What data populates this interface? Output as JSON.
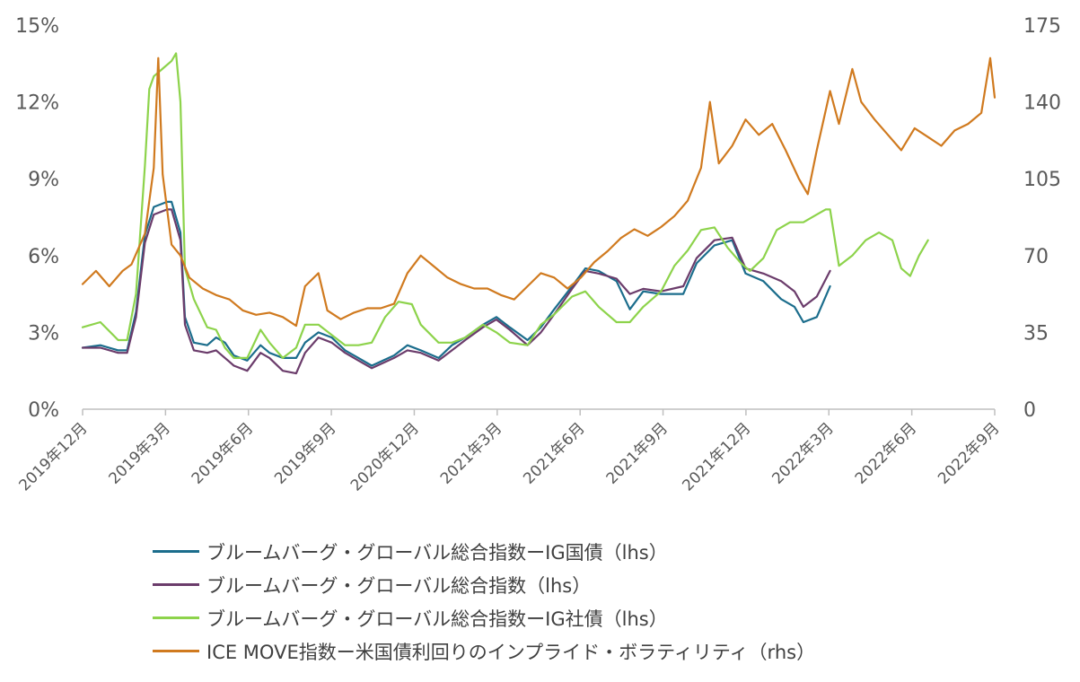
{
  "chart_data": {
    "type": "line",
    "x_categories": [
      "2019年12月",
      "2019年3月",
      "2019年6月",
      "2019年9月",
      "2020年12月",
      "2021年3月",
      "2021年6月",
      "2021年9月",
      "2021年12月",
      "2022年3月",
      "2022年6月",
      "2022年9月"
    ],
    "y_left": {
      "ticks": [
        "0%",
        "3%",
        "6%",
        "9%",
        "12%",
        "15%"
      ],
      "range": [
        0,
        15
      ]
    },
    "y_right": {
      "ticks": [
        "0",
        "35",
        "70",
        "105",
        "140",
        "175"
      ],
      "range": [
        0,
        175
      ]
    },
    "grid": false,
    "legend_placement": "bottom",
    "series": [
      {
        "name": "ブルームバーグ・グローバル総合指数ーIG国債（lhs）",
        "axis": "left",
        "color": "#1b6d8c",
        "points": [
          [
            0,
            2.4
          ],
          [
            0.4,
            2.5
          ],
          [
            0.8,
            2.3
          ],
          [
            1.0,
            2.3
          ],
          [
            1.2,
            3.8
          ],
          [
            1.4,
            6.8
          ],
          [
            1.6,
            7.9
          ],
          [
            1.9,
            8.1
          ],
          [
            2.0,
            8.1
          ],
          [
            2.2,
            6.9
          ],
          [
            2.3,
            3.6
          ],
          [
            2.5,
            2.6
          ],
          [
            2.8,
            2.5
          ],
          [
            3.0,
            2.8
          ],
          [
            3.2,
            2.6
          ],
          [
            3.4,
            2.1
          ],
          [
            3.7,
            1.9
          ],
          [
            4.0,
            2.5
          ],
          [
            4.2,
            2.2
          ],
          [
            4.5,
            2.0
          ],
          [
            4.8,
            2.0
          ],
          [
            5.0,
            2.6
          ],
          [
            5.3,
            3.0
          ],
          [
            5.6,
            2.8
          ],
          [
            5.9,
            2.3
          ],
          [
            6.2,
            2.0
          ],
          [
            6.5,
            1.7
          ],
          [
            7.0,
            2.1
          ],
          [
            7.3,
            2.5
          ],
          [
            7.6,
            2.3
          ],
          [
            8.0,
            2.0
          ],
          [
            8.3,
            2.5
          ],
          [
            8.6,
            2.8
          ],
          [
            9.0,
            3.3
          ],
          [
            9.3,
            3.6
          ],
          [
            9.6,
            3.2
          ],
          [
            10.0,
            2.7
          ],
          [
            10.3,
            3.2
          ],
          [
            10.6,
            3.9
          ],
          [
            11.0,
            4.8
          ],
          [
            11.3,
            5.5
          ],
          [
            11.6,
            5.4
          ],
          [
            12.0,
            5.0
          ],
          [
            12.3,
            3.9
          ],
          [
            12.6,
            4.6
          ],
          [
            13.0,
            4.5
          ],
          [
            13.5,
            4.5
          ],
          [
            13.8,
            5.7
          ],
          [
            14.2,
            6.4
          ],
          [
            14.6,
            6.6
          ],
          [
            14.9,
            5.3
          ],
          [
            15.3,
            5.0
          ],
          [
            15.7,
            4.3
          ],
          [
            16.0,
            4.0
          ],
          [
            16.2,
            3.4
          ],
          [
            16.5,
            3.6
          ],
          [
            16.8,
            4.8
          ]
        ]
      },
      {
        "name": "ブルームバーグ・グローバル総合指数（lhs）",
        "axis": "left",
        "color": "#6b3c6b",
        "points": [
          [
            0,
            2.4
          ],
          [
            0.4,
            2.4
          ],
          [
            0.8,
            2.2
          ],
          [
            1.0,
            2.2
          ],
          [
            1.2,
            3.6
          ],
          [
            1.4,
            6.5
          ],
          [
            1.6,
            7.6
          ],
          [
            1.9,
            7.8
          ],
          [
            2.0,
            7.8
          ],
          [
            2.2,
            6.6
          ],
          [
            2.3,
            3.3
          ],
          [
            2.5,
            2.3
          ],
          [
            2.8,
            2.2
          ],
          [
            3.0,
            2.3
          ],
          [
            3.2,
            2.0
          ],
          [
            3.4,
            1.7
          ],
          [
            3.7,
            1.5
          ],
          [
            4.0,
            2.2
          ],
          [
            4.2,
            2.0
          ],
          [
            4.5,
            1.5
          ],
          [
            4.8,
            1.4
          ],
          [
            5.0,
            2.2
          ],
          [
            5.3,
            2.8
          ],
          [
            5.6,
            2.6
          ],
          [
            5.9,
            2.2
          ],
          [
            6.2,
            1.9
          ],
          [
            6.5,
            1.6
          ],
          [
            7.0,
            2.0
          ],
          [
            7.3,
            2.3
          ],
          [
            7.6,
            2.2
          ],
          [
            8.0,
            1.9
          ],
          [
            8.3,
            2.3
          ],
          [
            8.6,
            2.7
          ],
          [
            9.0,
            3.2
          ],
          [
            9.3,
            3.5
          ],
          [
            9.6,
            3.1
          ],
          [
            10.0,
            2.5
          ],
          [
            10.3,
            3.0
          ],
          [
            10.6,
            3.7
          ],
          [
            11.0,
            4.7
          ],
          [
            11.3,
            5.4
          ],
          [
            11.6,
            5.3
          ],
          [
            12.0,
            5.1
          ],
          [
            12.3,
            4.5
          ],
          [
            12.6,
            4.7
          ],
          [
            13.0,
            4.6
          ],
          [
            13.5,
            4.8
          ],
          [
            13.8,
            5.9
          ],
          [
            14.2,
            6.6
          ],
          [
            14.6,
            6.7
          ],
          [
            14.9,
            5.5
          ],
          [
            15.3,
            5.3
          ],
          [
            15.7,
            5.0
          ],
          [
            16.0,
            4.6
          ],
          [
            16.2,
            4.0
          ],
          [
            16.5,
            4.4
          ],
          [
            16.8,
            5.4
          ]
        ]
      },
      {
        "name": "ブルームバーグ・グローバル総合指数ーIG社債（lhs）",
        "axis": "left",
        "color": "#8dd34b",
        "points": [
          [
            0,
            3.2
          ],
          [
            0.4,
            3.4
          ],
          [
            0.8,
            2.7
          ],
          [
            1.0,
            2.7
          ],
          [
            1.2,
            4.5
          ],
          [
            1.4,
            9.5
          ],
          [
            1.5,
            12.5
          ],
          [
            1.6,
            13.0
          ],
          [
            1.8,
            13.3
          ],
          [
            2.0,
            13.6
          ],
          [
            2.1,
            13.9
          ],
          [
            2.2,
            12.0
          ],
          [
            2.3,
            5.5
          ],
          [
            2.5,
            4.3
          ],
          [
            2.8,
            3.2
          ],
          [
            3.0,
            3.1
          ],
          [
            3.2,
            2.4
          ],
          [
            3.4,
            2.0
          ],
          [
            3.7,
            2.0
          ],
          [
            4.0,
            3.1
          ],
          [
            4.2,
            2.6
          ],
          [
            4.5,
            2.0
          ],
          [
            4.8,
            2.4
          ],
          [
            5.0,
            3.3
          ],
          [
            5.3,
            3.3
          ],
          [
            5.6,
            2.9
          ],
          [
            5.9,
            2.5
          ],
          [
            6.2,
            2.5
          ],
          [
            6.5,
            2.6
          ],
          [
            6.8,
            3.6
          ],
          [
            7.1,
            4.2
          ],
          [
            7.4,
            4.1
          ],
          [
            7.6,
            3.3
          ],
          [
            8.0,
            2.6
          ],
          [
            8.3,
            2.6
          ],
          [
            8.6,
            2.8
          ],
          [
            9.0,
            3.3
          ],
          [
            9.3,
            3.0
          ],
          [
            9.6,
            2.6
          ],
          [
            10.0,
            2.5
          ],
          [
            10.3,
            3.3
          ],
          [
            10.6,
            3.7
          ],
          [
            11.0,
            4.4
          ],
          [
            11.3,
            4.6
          ],
          [
            11.6,
            4.0
          ],
          [
            12.0,
            3.4
          ],
          [
            12.3,
            3.4
          ],
          [
            12.6,
            4.0
          ],
          [
            13.0,
            4.6
          ],
          [
            13.3,
            5.6
          ],
          [
            13.6,
            6.2
          ],
          [
            13.9,
            7.0
          ],
          [
            14.2,
            7.1
          ],
          [
            14.5,
            6.3
          ],
          [
            14.8,
            5.7
          ],
          [
            15.0,
            5.4
          ],
          [
            15.3,
            5.9
          ],
          [
            15.6,
            7.0
          ],
          [
            15.9,
            7.3
          ],
          [
            16.2,
            7.3
          ],
          [
            16.5,
            7.6
          ],
          [
            16.7,
            7.8
          ],
          [
            16.8,
            7.8
          ],
          [
            17.0,
            5.6
          ],
          [
            17.3,
            6.0
          ],
          [
            17.6,
            6.6
          ],
          [
            17.9,
            6.9
          ],
          [
            18.2,
            6.6
          ],
          [
            18.4,
            5.5
          ],
          [
            18.6,
            5.2
          ],
          [
            18.8,
            6.0
          ],
          [
            19.0,
            6.6
          ]
        ]
      },
      {
        "name": "ICE MOVE指数ー米国債利回りのインプライド・ボラティリティ（rhs）",
        "axis": "right",
        "color": "#d07a1f",
        "points": [
          [
            0,
            57
          ],
          [
            0.3,
            63
          ],
          [
            0.6,
            56
          ],
          [
            0.9,
            63
          ],
          [
            1.1,
            66
          ],
          [
            1.4,
            80
          ],
          [
            1.6,
            110
          ],
          [
            1.7,
            160
          ],
          [
            1.8,
            107
          ],
          [
            2.0,
            75
          ],
          [
            2.2,
            70
          ],
          [
            2.4,
            60
          ],
          [
            2.7,
            55
          ],
          [
            3.0,
            52
          ],
          [
            3.3,
            50
          ],
          [
            3.6,
            45
          ],
          [
            3.9,
            43
          ],
          [
            4.2,
            44
          ],
          [
            4.5,
            42
          ],
          [
            4.8,
            38
          ],
          [
            5.0,
            56
          ],
          [
            5.3,
            62
          ],
          [
            5.5,
            45
          ],
          [
            5.8,
            41
          ],
          [
            6.1,
            44
          ],
          [
            6.4,
            46
          ],
          [
            6.7,
            46
          ],
          [
            7.0,
            48
          ],
          [
            7.3,
            62
          ],
          [
            7.6,
            70
          ],
          [
            7.9,
            65
          ],
          [
            8.2,
            60
          ],
          [
            8.5,
            57
          ],
          [
            8.8,
            55
          ],
          [
            9.1,
            55
          ],
          [
            9.4,
            52
          ],
          [
            9.7,
            50
          ],
          [
            10.0,
            56
          ],
          [
            10.3,
            62
          ],
          [
            10.6,
            60
          ],
          [
            10.9,
            55
          ],
          [
            11.2,
            60
          ],
          [
            11.5,
            67
          ],
          [
            11.8,
            72
          ],
          [
            12.1,
            78
          ],
          [
            12.4,
            82
          ],
          [
            12.7,
            79
          ],
          [
            13.0,
            83
          ],
          [
            13.3,
            88
          ],
          [
            13.6,
            95
          ],
          [
            13.9,
            110
          ],
          [
            14.1,
            140
          ],
          [
            14.3,
            112
          ],
          [
            14.6,
            120
          ],
          [
            14.9,
            132
          ],
          [
            15.2,
            125
          ],
          [
            15.5,
            130
          ],
          [
            15.8,
            118
          ],
          [
            16.1,
            105
          ],
          [
            16.3,
            98
          ],
          [
            16.5,
            118
          ],
          [
            16.8,
            145
          ],
          [
            17.0,
            130
          ],
          [
            17.3,
            155
          ],
          [
            17.5,
            140
          ],
          [
            17.8,
            132
          ],
          [
            18.1,
            125
          ],
          [
            18.4,
            118
          ],
          [
            18.7,
            128
          ],
          [
            19.0,
            124
          ],
          [
            19.3,
            120
          ],
          [
            19.6,
            127
          ],
          [
            19.9,
            130
          ],
          [
            20.2,
            135
          ],
          [
            20.4,
            160
          ],
          [
            20.5,
            142
          ]
        ]
      }
    ]
  }
}
